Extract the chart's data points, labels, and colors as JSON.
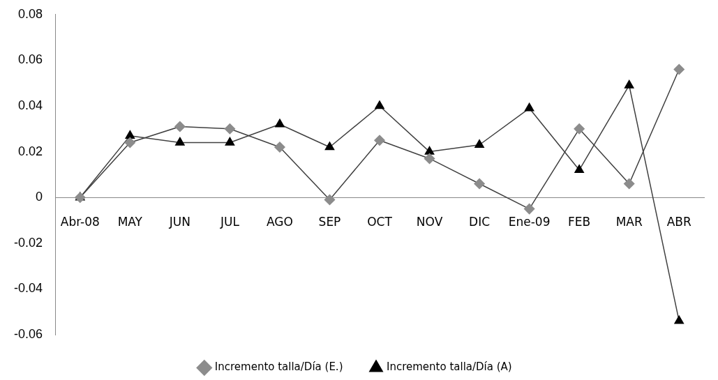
{
  "chart_data": {
    "type": "line",
    "categories": [
      "Abr-08",
      "MAY",
      "JUN",
      "JUL",
      "AGO",
      "SEP",
      "OCT",
      "NOV",
      "DIC",
      "Ene-09",
      "FEB",
      "MAR",
      "ABR"
    ],
    "series": [
      {
        "name": "Incremento talla/Día (E.)",
        "color": "#8c8c8c",
        "marker": "diamond",
        "values": [
          0,
          0.024,
          0.031,
          0.03,
          0.022,
          -0.001,
          0.025,
          0.017,
          0.006,
          -0.005,
          0.03,
          0.006,
          0.056
        ]
      },
      {
        "name": "Incremento talla/Día (A)",
        "color": "#000000",
        "marker": "triangle",
        "values": [
          0,
          0.027,
          0.024,
          0.024,
          0.032,
          0.022,
          0.04,
          0.02,
          0.023,
          0.039,
          0.012,
          0.049,
          -0.054
        ]
      }
    ],
    "ylim": [
      -0.06,
      0.08
    ],
    "yticks": [
      -0.06,
      -0.04,
      -0.02,
      0,
      0.02,
      0.04,
      0.06,
      0.08
    ],
    "grid": false,
    "legend": "bottom",
    "line_style": "solid"
  }
}
